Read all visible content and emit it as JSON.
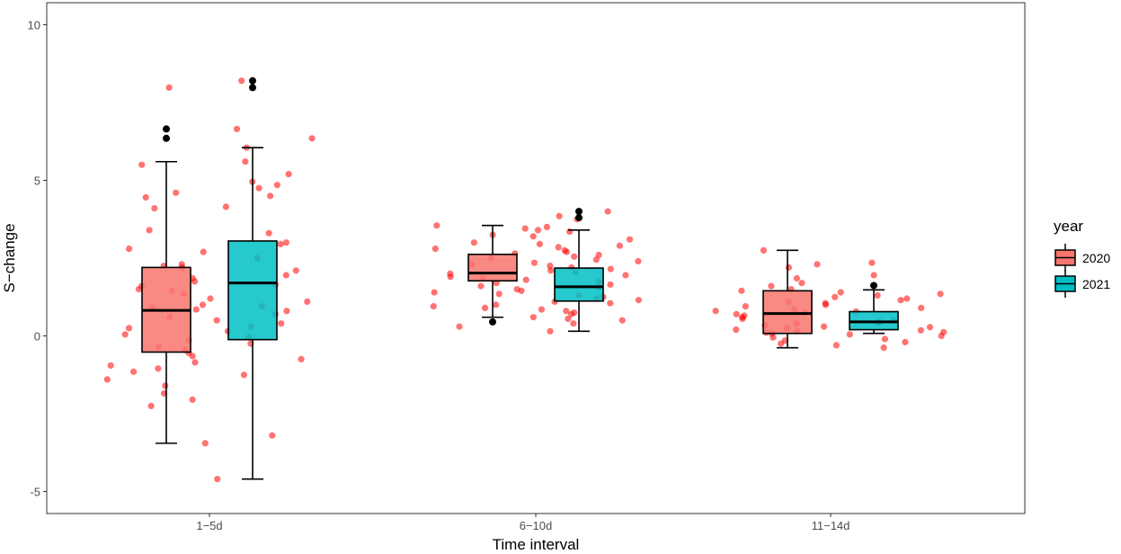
{
  "chart_data": {
    "type": "boxplot",
    "xlabel": "Time interval",
    "ylabel": "S−change",
    "categories": [
      "1−5d",
      "6−10d",
      "11−14d"
    ],
    "ylim": [
      -5.8,
      10.6
    ],
    "yticks": [
      -5,
      0,
      5,
      10
    ],
    "grid": false,
    "legend": {
      "title": "year",
      "position": "right"
    },
    "colors": {
      "2020": "#F8766D",
      "2021": "#00BFC4",
      "points": "#FF0000",
      "outliers": "#000000"
    },
    "series": [
      {
        "name": "2020",
        "boxes": [
          {
            "category": "1−5d",
            "q1": -0.52,
            "median": 0.82,
            "q3": 2.2,
            "whisker_low": -3.45,
            "whisker_high": 5.6,
            "outliers": [
              6.35,
              6.65
            ]
          },
          {
            "category": "6−10d",
            "q1": 1.77,
            "median": 2.02,
            "q3": 2.62,
            "whisker_low": 0.6,
            "whisker_high": 3.55,
            "outliers": [
              0.45
            ]
          },
          {
            "category": "11−14d",
            "q1": 0.08,
            "median": 0.72,
            "q3": 1.45,
            "whisker_low": -0.38,
            "whisker_high": 2.75,
            "outliers": []
          }
        ]
      },
      {
        "name": "2021",
        "boxes": [
          {
            "category": "1−5d",
            "q1": -0.12,
            "median": 1.7,
            "q3": 3.05,
            "whisker_low": -4.6,
            "whisker_high": 6.05,
            "outliers": [
              7.98,
              8.2
            ]
          },
          {
            "category": "6−10d",
            "q1": 1.12,
            "median": 1.58,
            "q3": 2.18,
            "whisker_low": 0.15,
            "whisker_high": 3.4,
            "outliers": [
              3.8,
              4.0
            ]
          },
          {
            "category": "11−14d",
            "q1": 0.2,
            "median": 0.45,
            "q3": 0.78,
            "whisker_low": 0.08,
            "whisker_high": 1.48,
            "outliers": [
              1.62
            ]
          }
        ]
      }
    ],
    "jitter_points": [
      {
        "category": "1−5d",
        "values": [
          8.2,
          7.98,
          6.65,
          6.35,
          6.05,
          5.6,
          5.5,
          5.2,
          4.95,
          4.85,
          4.75,
          4.6,
          4.5,
          4.45,
          4.15,
          4.1,
          3.4,
          3.3,
          3.0,
          2.95,
          2.8,
          2.7,
          2.5,
          2.3,
          2.25,
          2.2,
          2.1,
          1.95,
          1.85,
          1.75,
          1.65,
          1.6,
          1.5,
          1.45,
          1.35,
          1.2,
          1.1,
          1.0,
          0.95,
          0.9,
          0.85,
          0.8,
          0.7,
          0.6,
          0.5,
          0.4,
          0.3,
          0.25,
          0.15,
          0.05,
          -0.05,
          -0.15,
          -0.25,
          -0.35,
          -0.45,
          -0.55,
          -0.65,
          -0.75,
          -0.85,
          -0.95,
          -1.05,
          -1.15,
          -1.25,
          -1.4,
          -1.6,
          -1.85,
          -2.05,
          -2.25,
          -3.2,
          -3.45,
          -4.6
        ]
      },
      {
        "category": "6−10d",
        "values": [
          4.0,
          3.85,
          3.75,
          3.55,
          3.5,
          3.45,
          3.4,
          3.35,
          3.25,
          3.2,
          3.1,
          3.0,
          2.95,
          2.9,
          2.85,
          2.8,
          2.75,
          2.7,
          2.65,
          2.6,
          2.55,
          2.5,
          2.45,
          2.4,
          2.35,
          2.3,
          2.25,
          2.2,
          2.15,
          2.1,
          2.05,
          2.0,
          1.95,
          1.9,
          1.85,
          1.8,
          1.75,
          1.7,
          1.65,
          1.6,
          1.55,
          1.5,
          1.45,
          1.4,
          1.35,
          1.3,
          1.25,
          1.2,
          1.15,
          1.1,
          1.05,
          1.0,
          0.95,
          0.9,
          0.85,
          0.8,
          0.75,
          0.7,
          0.6,
          0.55,
          0.5,
          0.4,
          0.3,
          0.15
        ]
      },
      {
        "category": "11−14d",
        "values": [
          2.75,
          2.35,
          2.3,
          2.2,
          1.95,
          1.85,
          1.7,
          1.6,
          1.5,
          1.45,
          1.4,
          1.35,
          1.3,
          1.25,
          1.2,
          1.15,
          1.1,
          1.05,
          1.0,
          0.95,
          0.9,
          0.85,
          0.8,
          0.78,
          0.75,
          0.7,
          0.65,
          0.6,
          0.55,
          0.5,
          0.45,
          0.42,
          0.4,
          0.35,
          0.3,
          0.28,
          0.25,
          0.2,
          0.18,
          0.15,
          0.12,
          0.1,
          0.08,
          0.05,
          0.0,
          -0.05,
          -0.1,
          -0.15,
          -0.2,
          -0.25,
          -0.3,
          -0.38
        ]
      }
    ]
  }
}
